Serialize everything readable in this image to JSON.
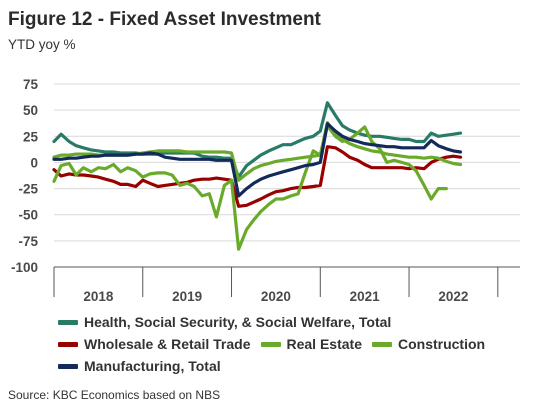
{
  "header": {
    "title": "Figure 12 - Fixed Asset Investment",
    "subtitle": "YTD yoy %"
  },
  "source": "Source: KBC Economics based on NBS",
  "chart_data": {
    "type": "line",
    "title": "Figure 12 - Fixed Asset Investment",
    "subtitle": "YTD yoy %",
    "ylim": [
      -100,
      75
    ],
    "yticks": [
      75,
      50,
      25,
      0,
      -25,
      -50,
      -75,
      -100
    ],
    "ytick_labels": [
      "75",
      "50",
      "25",
      "0",
      "-25",
      "-50",
      "-75",
      "-100"
    ],
    "xlim": [
      2017.5,
      2022.75
    ],
    "xtick_labels": [
      {
        "label": "2018",
        "x": 2018.0
      },
      {
        "label": "2019",
        "x": 2019.0
      },
      {
        "label": "2020",
        "x": 2020.0
      },
      {
        "label": "2021",
        "x": 2021.0
      },
      {
        "label": "2022",
        "x": 2022.0
      }
    ],
    "year_separators": [
      2017.5,
      2018.5,
      2019.5,
      2020.5,
      2021.5,
      2022.5
    ],
    "grid": true,
    "legend_position": "bottom",
    "series": [
      {
        "name": "Health, Social Security, & Social Welfare, Total",
        "color": "#2a7a68",
        "values": [
          [
            2017.5,
            20
          ],
          [
            2017.58,
            27
          ],
          [
            2017.67,
            20
          ],
          [
            2017.75,
            16
          ],
          [
            2017.83,
            14
          ],
          [
            2017.92,
            12
          ],
          [
            2018.0,
            11
          ],
          [
            2018.08,
            10
          ],
          [
            2018.17,
            10
          ],
          [
            2018.25,
            9
          ],
          [
            2018.33,
            9
          ],
          [
            2018.42,
            9
          ],
          [
            2018.5,
            8
          ],
          [
            2018.58,
            8
          ],
          [
            2018.67,
            8
          ],
          [
            2018.75,
            9
          ],
          [
            2018.83,
            9
          ],
          [
            2018.92,
            9
          ],
          [
            2019.0,
            9
          ],
          [
            2019.08,
            9
          ],
          [
            2019.17,
            6
          ],
          [
            2019.25,
            5
          ],
          [
            2019.33,
            5
          ],
          [
            2019.42,
            4
          ],
          [
            2019.5,
            4
          ],
          [
            2019.58,
            -14
          ],
          [
            2019.67,
            -3
          ],
          [
            2019.75,
            2
          ],
          [
            2019.83,
            7
          ],
          [
            2019.92,
            11
          ],
          [
            2020.0,
            14
          ],
          [
            2020.08,
            17
          ],
          [
            2020.17,
            17
          ],
          [
            2020.25,
            20
          ],
          [
            2020.33,
            23
          ],
          [
            2020.42,
            25
          ],
          [
            2020.5,
            30
          ],
          [
            2020.58,
            57
          ],
          [
            2020.67,
            45
          ],
          [
            2020.75,
            35
          ],
          [
            2020.83,
            31
          ],
          [
            2020.92,
            28
          ],
          [
            2021.0,
            26
          ],
          [
            2021.08,
            25
          ],
          [
            2021.17,
            25
          ],
          [
            2021.25,
            24
          ],
          [
            2021.33,
            23
          ],
          [
            2021.42,
            22
          ],
          [
            2021.5,
            22
          ],
          [
            2021.58,
            20
          ],
          [
            2021.67,
            20
          ],
          [
            2021.75,
            28
          ],
          [
            2021.83,
            25
          ],
          [
            2021.92,
            26
          ],
          [
            2022.0,
            27
          ],
          [
            2022.08,
            28
          ]
        ]
      },
      {
        "name": "Wholesale & Retail Trade",
        "color": "#990000",
        "values": [
          [
            2017.5,
            -7
          ],
          [
            2017.58,
            -13
          ],
          [
            2017.67,
            -11
          ],
          [
            2017.75,
            -12
          ],
          [
            2017.83,
            -12
          ],
          [
            2017.92,
            -13
          ],
          [
            2018.0,
            -14
          ],
          [
            2018.08,
            -16
          ],
          [
            2018.17,
            -18
          ],
          [
            2018.25,
            -21
          ],
          [
            2018.33,
            -21
          ],
          [
            2018.42,
            -23
          ],
          [
            2018.5,
            -17
          ],
          [
            2018.58,
            -20
          ],
          [
            2018.67,
            -23
          ],
          [
            2018.75,
            -22
          ],
          [
            2018.83,
            -21
          ],
          [
            2018.92,
            -20
          ],
          [
            2019.0,
            -19
          ],
          [
            2019.08,
            -17
          ],
          [
            2019.17,
            -16
          ],
          [
            2019.25,
            -16
          ],
          [
            2019.33,
            -15
          ],
          [
            2019.42,
            -16
          ],
          [
            2019.5,
            -17
          ],
          [
            2019.58,
            -42
          ],
          [
            2019.67,
            -41
          ],
          [
            2019.75,
            -38
          ],
          [
            2019.83,
            -35
          ],
          [
            2019.92,
            -31
          ],
          [
            2020.0,
            -28
          ],
          [
            2020.08,
            -27
          ],
          [
            2020.17,
            -25
          ],
          [
            2020.25,
            -24
          ],
          [
            2020.33,
            -24
          ],
          [
            2020.42,
            -23
          ],
          [
            2020.5,
            -22
          ],
          [
            2020.58,
            15
          ],
          [
            2020.67,
            14
          ],
          [
            2020.75,
            10
          ],
          [
            2020.83,
            5
          ],
          [
            2020.92,
            2
          ],
          [
            2021.0,
            -2
          ],
          [
            2021.08,
            -5
          ],
          [
            2021.17,
            -5
          ],
          [
            2021.25,
            -5
          ],
          [
            2021.33,
            -5
          ],
          [
            2021.42,
            -5
          ],
          [
            2021.5,
            -6
          ],
          [
            2021.58,
            -5
          ],
          [
            2021.67,
            -6
          ],
          [
            2021.75,
            0
          ],
          [
            2021.83,
            3
          ],
          [
            2021.92,
            5
          ],
          [
            2022.0,
            6
          ],
          [
            2022.08,
            5
          ]
        ]
      },
      {
        "name": "Real Estate",
        "color": "#6aaa2a",
        "values": [
          [
            2017.5,
            5
          ],
          [
            2017.58,
            7
          ],
          [
            2017.67,
            7
          ],
          [
            2017.75,
            8
          ],
          [
            2017.83,
            8
          ],
          [
            2017.92,
            8
          ],
          [
            2018.0,
            7
          ],
          [
            2018.08,
            7
          ],
          [
            2018.17,
            7
          ],
          [
            2018.25,
            7
          ],
          [
            2018.33,
            7
          ],
          [
            2018.42,
            8
          ],
          [
            2018.5,
            9
          ],
          [
            2018.58,
            10
          ],
          [
            2018.67,
            11
          ],
          [
            2018.75,
            11
          ],
          [
            2018.83,
            11
          ],
          [
            2018.92,
            11
          ],
          [
            2019.0,
            10
          ],
          [
            2019.08,
            10
          ],
          [
            2019.17,
            10
          ],
          [
            2019.25,
            10
          ],
          [
            2019.33,
            10
          ],
          [
            2019.42,
            10
          ],
          [
            2019.5,
            9
          ],
          [
            2019.58,
            -17
          ],
          [
            2019.67,
            -11
          ],
          [
            2019.75,
            -6
          ],
          [
            2019.83,
            -3
          ],
          [
            2019.92,
            -1
          ],
          [
            2020.0,
            1
          ],
          [
            2020.08,
            2
          ],
          [
            2020.17,
            3
          ],
          [
            2020.25,
            4
          ],
          [
            2020.33,
            5
          ],
          [
            2020.42,
            6
          ],
          [
            2020.5,
            7
          ],
          [
            2020.58,
            38
          ],
          [
            2020.67,
            28
          ],
          [
            2020.75,
            22
          ],
          [
            2020.83,
            18
          ],
          [
            2020.92,
            15
          ],
          [
            2021.0,
            13
          ],
          [
            2021.08,
            11
          ],
          [
            2021.17,
            10
          ],
          [
            2021.25,
            8
          ],
          [
            2021.33,
            7
          ],
          [
            2021.42,
            6
          ],
          [
            2021.5,
            5
          ],
          [
            2021.58,
            5
          ],
          [
            2021.67,
            4
          ],
          [
            2021.75,
            5
          ],
          [
            2021.83,
            4
          ],
          [
            2021.92,
            1
          ],
          [
            2022.0,
            -1
          ],
          [
            2022.08,
            -2
          ]
        ]
      },
      {
        "name": "Construction",
        "color": "#6aaa2a",
        "values": [
          [
            2017.5,
            -18
          ],
          [
            2017.58,
            -3
          ],
          [
            2017.67,
            -1
          ],
          [
            2017.75,
            -12
          ],
          [
            2017.83,
            -5
          ],
          [
            2017.92,
            -9
          ],
          [
            2018.0,
            -5
          ],
          [
            2018.08,
            -6
          ],
          [
            2018.17,
            -2
          ],
          [
            2018.25,
            -9
          ],
          [
            2018.33,
            -5
          ],
          [
            2018.42,
            -8
          ],
          [
            2018.5,
            -14
          ],
          [
            2018.58,
            -11
          ],
          [
            2018.67,
            -10
          ],
          [
            2018.75,
            -10
          ],
          [
            2018.83,
            -12
          ],
          [
            2018.92,
            -22
          ],
          [
            2019.0,
            -20
          ],
          [
            2019.08,
            -23
          ],
          [
            2019.17,
            -32
          ],
          [
            2019.25,
            -30
          ],
          [
            2019.33,
            -52
          ],
          [
            2019.42,
            -22
          ],
          [
            2019.5,
            -17
          ],
          [
            2019.58,
            -83
          ],
          [
            2019.67,
            -64
          ],
          [
            2019.75,
            -55
          ],
          [
            2019.83,
            -47
          ],
          [
            2019.92,
            -40
          ],
          [
            2020.0,
            -35
          ],
          [
            2020.08,
            -35
          ],
          [
            2020.17,
            -32
          ],
          [
            2020.25,
            -30
          ],
          [
            2020.33,
            -10
          ],
          [
            2020.42,
            11
          ],
          [
            2020.5,
            7
          ],
          [
            2020.58,
            35
          ],
          [
            2020.67,
            25
          ],
          [
            2020.75,
            20
          ],
          [
            2020.83,
            22
          ],
          [
            2020.92,
            28
          ],
          [
            2021.0,
            34
          ],
          [
            2021.08,
            20
          ],
          [
            2021.17,
            13
          ],
          [
            2021.25,
            0
          ],
          [
            2021.33,
            2
          ],
          [
            2021.42,
            0
          ],
          [
            2021.5,
            -2
          ],
          [
            2021.58,
            -8
          ],
          [
            2021.67,
            -22
          ],
          [
            2021.75,
            -35
          ],
          [
            2021.83,
            -25
          ],
          [
            2021.92,
            -25
          ]
        ]
      },
      {
        "name": "Manufacturing, Total",
        "color": "#132a5a",
        "values": [
          [
            2017.5,
            3
          ],
          [
            2017.58,
            3
          ],
          [
            2017.67,
            4
          ],
          [
            2017.75,
            4
          ],
          [
            2017.83,
            5
          ],
          [
            2017.92,
            6
          ],
          [
            2018.0,
            6
          ],
          [
            2018.08,
            7
          ],
          [
            2018.17,
            7
          ],
          [
            2018.25,
            7
          ],
          [
            2018.33,
            7
          ],
          [
            2018.42,
            8
          ],
          [
            2018.5,
            8
          ],
          [
            2018.58,
            9
          ],
          [
            2018.67,
            8
          ],
          [
            2018.75,
            5
          ],
          [
            2018.83,
            4
          ],
          [
            2018.92,
            3
          ],
          [
            2019.0,
            3
          ],
          [
            2019.08,
            3
          ],
          [
            2019.17,
            3
          ],
          [
            2019.25,
            3
          ],
          [
            2019.33,
            2
          ],
          [
            2019.42,
            2
          ],
          [
            2019.5,
            2
          ],
          [
            2019.58,
            -32
          ],
          [
            2019.67,
            -25
          ],
          [
            2019.75,
            -20
          ],
          [
            2019.83,
            -16
          ],
          [
            2019.92,
            -13
          ],
          [
            2020.0,
            -11
          ],
          [
            2020.08,
            -9
          ],
          [
            2020.17,
            -7
          ],
          [
            2020.25,
            -5
          ],
          [
            2020.33,
            -3
          ],
          [
            2020.42,
            -2
          ],
          [
            2020.5,
            0
          ],
          [
            2020.58,
            37
          ],
          [
            2020.67,
            30
          ],
          [
            2020.75,
            25
          ],
          [
            2020.83,
            22
          ],
          [
            2020.92,
            20
          ],
          [
            2021.0,
            18
          ],
          [
            2021.08,
            17
          ],
          [
            2021.17,
            16
          ],
          [
            2021.25,
            15
          ],
          [
            2021.33,
            15
          ],
          [
            2021.42,
            14
          ],
          [
            2021.5,
            14
          ],
          [
            2021.58,
            14
          ],
          [
            2021.67,
            14
          ],
          [
            2021.75,
            21
          ],
          [
            2021.83,
            16
          ],
          [
            2021.92,
            13
          ],
          [
            2022.0,
            11
          ],
          [
            2022.08,
            10
          ]
        ]
      }
    ]
  }
}
